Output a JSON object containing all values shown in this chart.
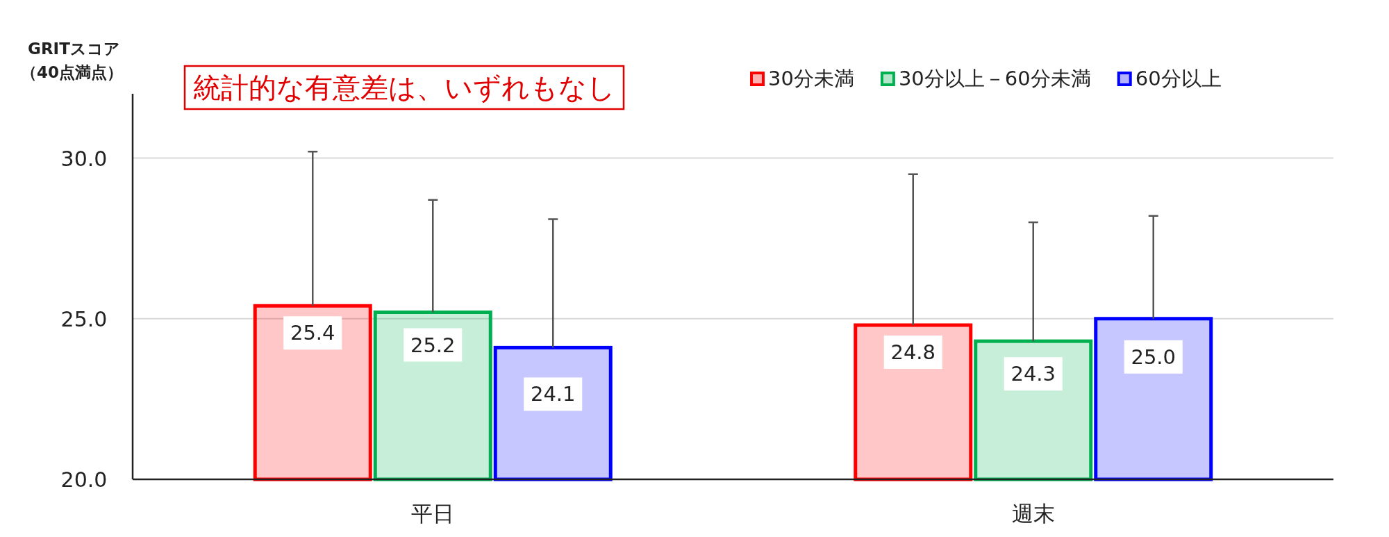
{
  "chart_data": {
    "type": "bar",
    "ylabel": "GRITスコア（40点満点）",
    "categories": [
      "平日",
      "週末"
    ],
    "series": [
      {
        "name": "30分未満",
        "color": "#ff0000",
        "values": [
          25.4,
          24.8
        ],
        "value_labels": [
          "25.4",
          "24.8"
        ],
        "errors": [
          [
            25.4,
            30.2
          ],
          [
            24.8,
            29.5
          ]
        ]
      },
      {
        "name": "30分以上－60分未満",
        "color": "#00b050",
        "values": [
          25.2,
          24.3
        ],
        "value_labels": [
          "25.2",
          "24.3"
        ],
        "errors": [
          [
            25.2,
            28.7
          ],
          [
            24.3,
            28.0
          ]
        ]
      },
      {
        "name": "60分以上",
        "color": "#0000ff",
        "values": [
          24.1,
          25.0
        ],
        "value_labels": [
          "24.1",
          "25.0"
        ],
        "errors": [
          [
            24.1,
            28.1
          ],
          [
            25.0,
            28.2
          ]
        ]
      }
    ],
    "ylim": [
      20,
      32
    ],
    "yticks": [
      {
        "value": 20,
        "label": "20.0"
      },
      {
        "value": 25,
        "label": "25.0"
      },
      {
        "value": 30,
        "label": "30.0"
      }
    ],
    "grid": "y",
    "legend": "top right",
    "annotations": [
      "統計的な有意差は、いずれもなし"
    ]
  }
}
